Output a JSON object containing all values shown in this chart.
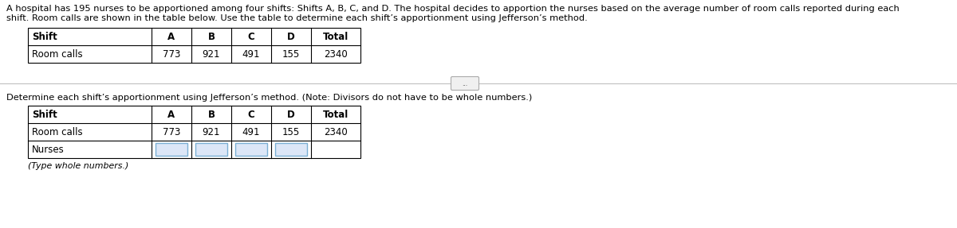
{
  "title_line1": "A hospital has 195 nurses to be apportioned among four shifts: Shifts A, B, C, and D. The hospital decides to apportion the nurses based on the average number of room calls reported during each",
  "title_line2": "shift. Room calls are shown in the table below. Use the table to determine each shift’s apportionment using Jefferson’s method.",
  "table1_headers": [
    "Shift",
    "A",
    "B",
    "C",
    "D",
    "Total"
  ],
  "table1_row1_label": "Room calls",
  "table1_row1_vals": [
    "773",
    "921",
    "491",
    "155",
    "2340"
  ],
  "instruction_text": "Determine each shift’s apportionment using Jefferson’s method. (Note: Divisors do not have to be whole numbers.)",
  "table2_headers": [
    "Shift",
    "A",
    "B",
    "C",
    "D",
    "Total"
  ],
  "table2_row1_label": "Room calls",
  "table2_row1_vals": [
    "773",
    "921",
    "491",
    "155",
    "2340"
  ],
  "table2_row2_label": "Nurses",
  "footnote": "(Type whole numbers.)",
  "bg_color": "#ffffff",
  "text_color": "#000000",
  "title_font_size": 8.2,
  "table_font_size": 8.5,
  "input_box_fill": "#dce6f7",
  "input_box_edge": "#7bafd4",
  "separator_color": "#c0c0c0",
  "btn_fill": "#f0f0f0",
  "btn_edge": "#aaaaaa"
}
